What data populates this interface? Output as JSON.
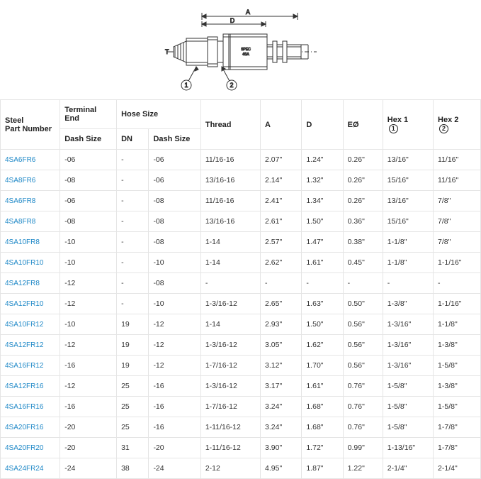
{
  "diagram": {
    "labels": {
      "A": "A",
      "D": "D",
      "T": "T",
      "circle1": "1",
      "circle2": "2"
    },
    "colors": {
      "stroke": "#333333",
      "fill": "#ffffff",
      "shade": "#9e9e9e"
    }
  },
  "table": {
    "headers": {
      "part": "Steel\nPart Number",
      "terminal": "Terminal End",
      "hose": "Hose Size",
      "thread": "Thread",
      "A": "A",
      "D": "D",
      "EO": "EØ",
      "hex1": "Hex 1",
      "hex2": "Hex 2",
      "dash1": "Dash Size",
      "dn": "DN",
      "dash2": "Dash Size",
      "hex1_icon": "1",
      "hex2_icon": "2"
    },
    "rows": [
      {
        "part": "4SA6FR6",
        "term": "-06",
        "dn": "-",
        "dash": "-06",
        "thread": "11/16-16",
        "A": "2.07\"",
        "D": "1.24\"",
        "EO": "0.26\"",
        "h1": "13/16\"",
        "h2": "11/16\""
      },
      {
        "part": "4SA8FR6",
        "term": "-08",
        "dn": "-",
        "dash": "-06",
        "thread": "13/16-16",
        "A": "2.14\"",
        "D": "1.32\"",
        "EO": "0.26\"",
        "h1": "15/16\"",
        "h2": "11/16\""
      },
      {
        "part": "4SA6FR8",
        "term": "-06",
        "dn": "-",
        "dash": "-08",
        "thread": "11/16-16",
        "A": "2.41\"",
        "D": "1.34\"",
        "EO": "0.26\"",
        "h1": "13/16\"",
        "h2": "7/8\""
      },
      {
        "part": "4SA8FR8",
        "term": "-08",
        "dn": "-",
        "dash": "-08",
        "thread": "13/16-16",
        "A": "2.61\"",
        "D": "1.50\"",
        "EO": "0.36\"",
        "h1": "15/16\"",
        "h2": "7/8\""
      },
      {
        "part": "4SA10FR8",
        "term": "-10",
        "dn": "-",
        "dash": "-08",
        "thread": "1-14",
        "A": "2.57\"",
        "D": "1.47\"",
        "EO": "0.38\"",
        "h1": "1-1/8\"",
        "h2": "7/8\""
      },
      {
        "part": "4SA10FR10",
        "term": "-10",
        "dn": "-",
        "dash": "-10",
        "thread": "1-14",
        "A": "2.62\"",
        "D": "1.61\"",
        "EO": "0.45\"",
        "h1": "1-1/8\"",
        "h2": "1-1/16\""
      },
      {
        "part": "4SA12FR8",
        "term": "-12",
        "dn": "-",
        "dash": "-08",
        "thread": "-",
        "A": "-",
        "D": "-",
        "EO": "-",
        "h1": "-",
        "h2": "-"
      },
      {
        "part": "4SA12FR10",
        "term": "-12",
        "dn": "-",
        "dash": "-10",
        "thread": "1-3/16-12",
        "A": "2.65\"",
        "D": "1.63\"",
        "EO": "0.50\"",
        "h1": "1-3/8\"",
        "h2": "1-1/16\""
      },
      {
        "part": "4SA10FR12",
        "term": "-10",
        "dn": "19",
        "dash": "-12",
        "thread": "1-14",
        "A": "2.93\"",
        "D": "1.50\"",
        "EO": "0.56\"",
        "h1": "1-3/16\"",
        "h2": "1-1/8\""
      },
      {
        "part": "4SA12FR12",
        "term": "-12",
        "dn": "19",
        "dash": "-12",
        "thread": "1-3/16-12",
        "A": "3.05\"",
        "D": "1.62\"",
        "EO": "0.56\"",
        "h1": "1-3/16\"",
        "h2": "1-3/8\""
      },
      {
        "part": "4SA16FR12",
        "term": "-16",
        "dn": "19",
        "dash": "-12",
        "thread": "1-7/16-12",
        "A": "3.12\"",
        "D": "1.70\"",
        "EO": "0.56\"",
        "h1": "1-3/16\"",
        "h2": "1-5/8\""
      },
      {
        "part": "4SA12FR16",
        "term": "-12",
        "dn": "25",
        "dash": "-16",
        "thread": "1-3/16-12",
        "A": "3.17\"",
        "D": "1.61\"",
        "EO": "0.76\"",
        "h1": "1-5/8\"",
        "h2": "1-3/8\""
      },
      {
        "part": "4SA16FR16",
        "term": "-16",
        "dn": "25",
        "dash": "-16",
        "thread": "1-7/16-12",
        "A": "3.24\"",
        "D": "1.68\"",
        "EO": "0.76\"",
        "h1": "1-5/8\"",
        "h2": "1-5/8\""
      },
      {
        "part": "4SA20FR16",
        "term": "-20",
        "dn": "25",
        "dash": "-16",
        "thread": "1-11/16-12",
        "A": "3.24\"",
        "D": "1.68\"",
        "EO": "0.76\"",
        "h1": "1-5/8\"",
        "h2": "1-7/8\""
      },
      {
        "part": "4SA20FR20",
        "term": "-20",
        "dn": "31",
        "dash": "-20",
        "thread": "1-11/16-12",
        "A": "3.90\"",
        "D": "1.72\"",
        "EO": "0.99\"",
        "h1": "1-13/16\"",
        "h2": "1-7/8\""
      },
      {
        "part": "4SA24FR24",
        "term": "-24",
        "dn": "38",
        "dash": "-24",
        "thread": "2-12",
        "A": "4.95\"",
        "D": "1.87\"",
        "EO": "1.22\"",
        "h1": "2-1/4\"",
        "h2": "2-1/4\""
      }
    ]
  }
}
